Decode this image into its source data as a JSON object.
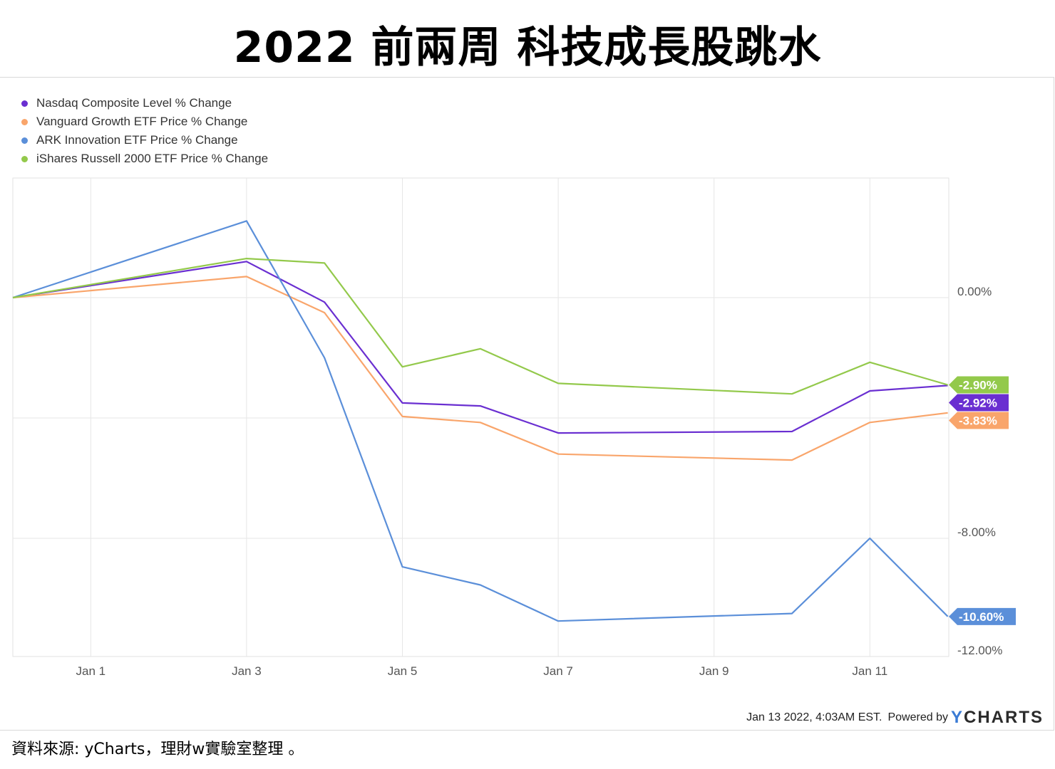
{
  "title": "2022 前兩周 科技成長股跳水",
  "chart_data": {
    "type": "line",
    "x": [
      "2021-12-31",
      "2022-01-03",
      "2022-01-04",
      "2022-01-05",
      "2022-01-06",
      "2022-01-07",
      "2022-01-10",
      "2022-01-11",
      "2022-01-12"
    ],
    "x_tick_labels": [
      "Jan 1",
      "Jan 3",
      "Jan 5",
      "Jan 7",
      "Jan 9",
      "Jan 11"
    ],
    "x_tick_dates": [
      "2022-01-01",
      "2022-01-03",
      "2022-01-05",
      "2022-01-07",
      "2022-01-09",
      "2022-01-11"
    ],
    "y_tick_labels": [
      "0.00%",
      "-8.00%",
      "-12.00%"
    ],
    "y_tick_values": [
      0,
      -8,
      -12
    ],
    "ylim": [
      -12,
      4
    ],
    "grid": true,
    "legend_position": "top-left",
    "series": [
      {
        "name": "Nasdaq Composite Level % Change",
        "color": "#6a2fd1",
        "values": [
          0,
          1.2,
          -0.15,
          -3.5,
          -3.6,
          -4.5,
          -4.45,
          -3.1,
          -2.92
        ],
        "end_label": "-2.92%"
      },
      {
        "name": "Vanguard Growth ETF Price % Change",
        "color": "#f9a56b",
        "values": [
          0,
          0.7,
          -0.5,
          -3.95,
          -4.15,
          -5.2,
          -5.4,
          -4.15,
          -3.83
        ],
        "end_label": "-3.83%"
      },
      {
        "name": "ARK Innovation ETF Price % Change",
        "color": "#5b8fd9",
        "values": [
          0,
          2.55,
          -2.0,
          -8.95,
          -9.55,
          -10.75,
          -10.5,
          -8.0,
          -10.6
        ],
        "end_label": "-10.60%"
      },
      {
        "name": "iShares Russell 2000 ETF Price % Change",
        "color": "#93c94b",
        "values": [
          0,
          1.3,
          1.15,
          -2.3,
          -1.7,
          -2.85,
          -3.2,
          -2.15,
          -2.9
        ],
        "end_label": "-2.90%"
      }
    ]
  },
  "footer": {
    "timestamp": "Jan 13 2022, 4:03AM EST.",
    "powered_by": "Powered by",
    "logo_y": "Y",
    "logo_rest": "CHARTS"
  },
  "source_note": "資料來源:  yCharts，理財w實驗室整理 。"
}
